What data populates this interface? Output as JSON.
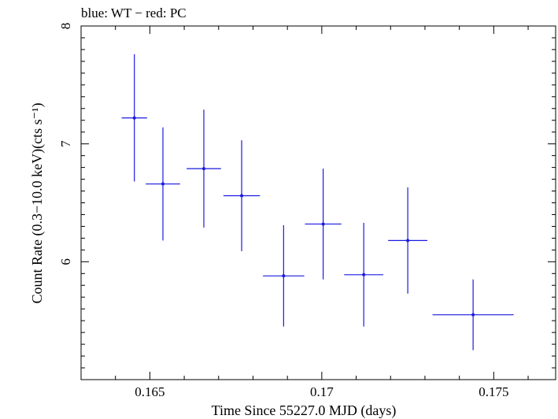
{
  "chart_data": {
    "type": "scatter",
    "title": "blue: WT − red: PC",
    "xlabel": "Time Since 55227.0 MJD (days)",
    "ylabel": "Count Rate (0.3−10.0 keV)(cts s⁻¹)",
    "xlim": [
      0.163,
      0.1768
    ],
    "ylim": [
      5.0,
      8.0
    ],
    "x_ticks": [
      0.165,
      0.17,
      0.175
    ],
    "x_tick_labels": [
      "0.165",
      "0.17",
      "0.175"
    ],
    "y_ticks": [
      6,
      7,
      8
    ],
    "y_tick_labels": [
      "6",
      "7",
      "8"
    ],
    "grid": false,
    "series": [
      {
        "mode": "WT",
        "color": "#1a1ae0",
        "points": [
          {
            "x": 0.16455,
            "xerr": 0.00037,
            "y": 7.22,
            "yerr_lo": 0.54,
            "yerr_hi": 0.54
          },
          {
            "x": 0.16538,
            "xerr": 0.0005,
            "y": 6.66,
            "yerr_lo": 0.48,
            "yerr_hi": 0.48
          },
          {
            "x": 0.16657,
            "xerr": 0.0005,
            "y": 6.79,
            "yerr_lo": 0.5,
            "yerr_hi": 0.5
          },
          {
            "x": 0.16767,
            "xerr": 0.00053,
            "y": 6.56,
            "yerr_lo": 0.47,
            "yerr_hi": 0.47
          },
          {
            "x": 0.16889,
            "xerr": 0.0006,
            "y": 5.88,
            "yerr_lo": 0.43,
            "yerr_hi": 0.43
          },
          {
            "x": 0.17004,
            "xerr": 0.00053,
            "y": 6.32,
            "yerr_lo": 0.47,
            "yerr_hi": 0.47
          },
          {
            "x": 0.17122,
            "xerr": 0.00057,
            "y": 5.89,
            "yerr_lo": 0.44,
            "yerr_hi": 0.44
          },
          {
            "x": 0.1725,
            "xerr": 0.00057,
            "y": 6.18,
            "yerr_lo": 0.45,
            "yerr_hi": 0.45
          },
          {
            "x": 0.1744,
            "xerr": 0.00118,
            "y": 5.55,
            "yerr_lo": 0.3,
            "yerr_hi": 0.3
          }
        ]
      }
    ]
  }
}
